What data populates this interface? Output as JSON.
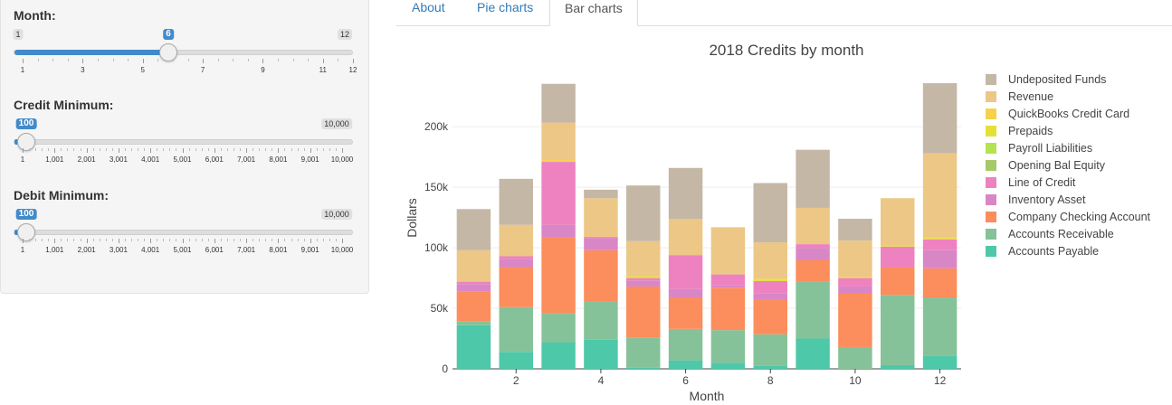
{
  "sidebar": {
    "sliders": [
      {
        "label": "Month:",
        "min": 1,
        "max": 12,
        "value": 6,
        "min_label": "1",
        "max_label": "12",
        "value_label": "6",
        "tick_labels": [
          "1",
          "3",
          "5",
          "7",
          "9",
          "11",
          "12"
        ]
      },
      {
        "label": "Credit Minimum:",
        "min": 1,
        "max": 10000,
        "value": 100,
        "min_label": "100",
        "max_label": "10,000",
        "value_label": "100",
        "tick_labels": [
          "1",
          "1,001",
          "2,001",
          "3,001",
          "4,001",
          "5,001",
          "6,001",
          "7,001",
          "8,001",
          "9,001",
          "10,000"
        ]
      },
      {
        "label": "Debit Minimum:",
        "min": 1,
        "max": 10000,
        "value": 100,
        "min_label": "100",
        "max_label": "10,000",
        "value_label": "100",
        "tick_labels": [
          "1",
          "1,001",
          "2,001",
          "3,001",
          "4,001",
          "5,001",
          "6,001",
          "7,001",
          "8,001",
          "9,001",
          "10,000"
        ]
      }
    ]
  },
  "tabs": [
    {
      "label": "About",
      "active": false
    },
    {
      "label": "Pie charts",
      "active": false
    },
    {
      "label": "Bar charts",
      "active": true
    }
  ],
  "chart_data": {
    "type": "bar",
    "stacked": true,
    "title": "2018 Credits by month",
    "xlabel": "Month",
    "ylabel": "Dollars",
    "x": [
      1,
      2,
      3,
      4,
      5,
      6,
      7,
      8,
      9,
      10,
      11,
      12
    ],
    "x_tick_labels": [
      "2",
      "4",
      "6",
      "8",
      "10",
      "12"
    ],
    "y_tick_labels": [
      "0",
      "50k",
      "100k",
      "150k",
      "200k"
    ],
    "ylim": [
      0,
      245000
    ],
    "legend_position": "right",
    "series": [
      {
        "name": "Accounts Payable",
        "color": "#4dc8a8",
        "values": [
          36000,
          14000,
          22000,
          24000,
          1000,
          7000,
          5000,
          2500,
          25000,
          0,
          3000,
          11000
        ]
      },
      {
        "name": "Accounts Receivable",
        "color": "#86c299",
        "values": [
          3000,
          37000,
          24000,
          32000,
          25000,
          26000,
          27000,
          26000,
          47000,
          18000,
          58000,
          48000
        ]
      },
      {
        "name": "Company Checking Account",
        "color": "#fc8d5c",
        "values": [
          25000,
          33000,
          63000,
          42000,
          42000,
          26000,
          35000,
          29000,
          18000,
          44000,
          23000,
          24000
        ]
      },
      {
        "name": "Inventory Asset",
        "color": "#d986c6",
        "values": [
          6000,
          7000,
          10000,
          10000,
          5000,
          7000,
          2000,
          5000,
          10000,
          6000,
          0,
          15000
        ]
      },
      {
        "name": "Line of Credit",
        "color": "#ee82c0",
        "values": [
          2000,
          2000,
          52000,
          1000,
          2000,
          28000,
          9000,
          10000,
          3000,
          7000,
          17000,
          9000
        ]
      },
      {
        "name": "Opening Bal Equity",
        "color": "#a6c96a",
        "values": [
          0,
          0,
          0,
          0,
          0,
          0,
          0,
          0,
          0,
          0,
          0,
          0
        ]
      },
      {
        "name": "Payroll Liabilities",
        "color": "#b5e350",
        "values": [
          0,
          0,
          0,
          0,
          0,
          0,
          0,
          0,
          0,
          0,
          0,
          0
        ]
      },
      {
        "name": "Prepaids",
        "color": "#e5e038",
        "values": [
          0,
          0,
          0,
          0,
          1500,
          0,
          0,
          1000,
          0,
          0,
          1000,
          1000
        ]
      },
      {
        "name": "QuickBooks Credit Card",
        "color": "#f5d24a",
        "values": [
          0,
          0,
          1500,
          0,
          0,
          0,
          0,
          1000,
          0,
          1000,
          0,
          1000
        ]
      },
      {
        "name": "Revenue",
        "color": "#ecc786",
        "values": [
          26000,
          26000,
          31000,
          32000,
          29000,
          30000,
          39000,
          30000,
          30000,
          30000,
          39000,
          69000
        ]
      },
      {
        "name": "Undeposited Funds",
        "color": "#c5b7a6",
        "values": [
          34000,
          38000,
          32000,
          7000,
          46000,
          42000,
          0,
          49000,
          48000,
          18000,
          0,
          58000
        ]
      }
    ]
  }
}
